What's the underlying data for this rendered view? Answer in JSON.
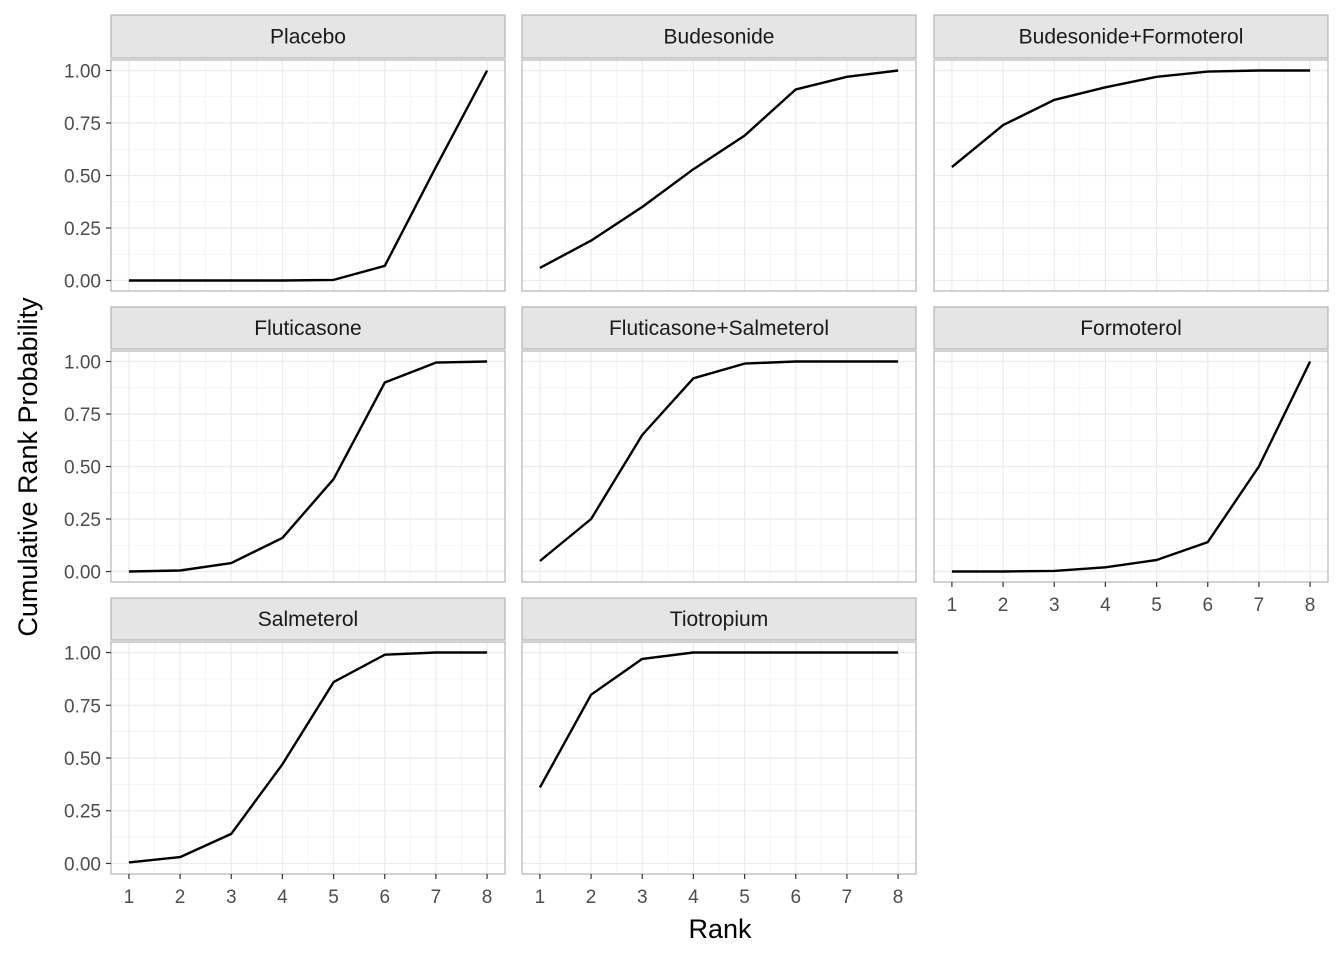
{
  "chart_data": {
    "type": "line",
    "layout": "facet-grid",
    "xlabel": "Rank",
    "ylabel": "Cumulative Rank Probability",
    "x": [
      1,
      2,
      3,
      4,
      5,
      6,
      7,
      8
    ],
    "x_ticks": [
      "1",
      "2",
      "3",
      "4",
      "5",
      "6",
      "7",
      "8"
    ],
    "y_ticks": [
      "0.00",
      "0.25",
      "0.50",
      "0.75",
      "1.00"
    ],
    "ylim": [
      -0.05,
      1.05
    ],
    "xlim": [
      0.65,
      8.35
    ],
    "grid": true,
    "line_color": "#000000",
    "panels": [
      {
        "name": "Placebo",
        "values": [
          0.0,
          0.0,
          0.0,
          0.0,
          0.003,
          0.07,
          0.54,
          1.0
        ]
      },
      {
        "name": "Budesonide",
        "values": [
          0.06,
          0.19,
          0.35,
          0.53,
          0.69,
          0.91,
          0.97,
          1.0
        ]
      },
      {
        "name": "Budesonide+Formoterol",
        "values": [
          0.54,
          0.74,
          0.86,
          0.92,
          0.97,
          0.995,
          1.0,
          1.0
        ]
      },
      {
        "name": "Fluticasone",
        "values": [
          0.0,
          0.005,
          0.04,
          0.16,
          0.44,
          0.9,
          0.995,
          1.0
        ]
      },
      {
        "name": "Fluticasone+Salmeterol",
        "values": [
          0.05,
          0.25,
          0.65,
          0.92,
          0.99,
          1.0,
          1.0,
          1.0
        ]
      },
      {
        "name": "Formoterol",
        "values": [
          0.0,
          0.0,
          0.003,
          0.02,
          0.055,
          0.14,
          0.5,
          1.0
        ]
      },
      {
        "name": "Salmeterol",
        "values": [
          0.005,
          0.03,
          0.14,
          0.47,
          0.86,
          0.99,
          1.0,
          1.0
        ]
      },
      {
        "name": "Tiotropium",
        "values": [
          0.36,
          0.8,
          0.97,
          1.0,
          1.0,
          1.0,
          1.0,
          1.0
        ]
      }
    ]
  }
}
